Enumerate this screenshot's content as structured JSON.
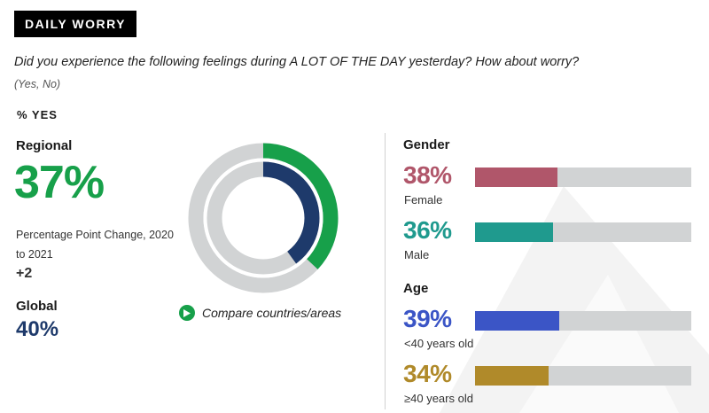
{
  "badge": "DAILY WORRY",
  "question": "Did you experience the following feelings during A LOT OF THE DAY yesterday? How about worry?",
  "answers": "(Yes, No)",
  "pct_label": "% YES",
  "regional": {
    "title": "Regional",
    "value": "37%",
    "change_label": "Percentage Point Change, 2020 to 2021",
    "change_value": "+2"
  },
  "global": {
    "title": "Global",
    "value": "40%"
  },
  "compare_label": "Compare countries/areas",
  "colors": {
    "regional": "#17a04a",
    "global": "#1e3a6b",
    "track": "#d1d3d4",
    "female": "#b0566a",
    "male": "#1f9a8e",
    "under40": "#3b55c6",
    "over40": "#b08a2a"
  },
  "icons": {
    "compare": "play-icon"
  },
  "chart_data": [
    {
      "type": "pie",
      "series": [
        {
          "name": "Regional",
          "value": 37
        },
        {
          "name": "Global",
          "value": 40
        }
      ]
    },
    {
      "type": "bar",
      "xlim": [
        0,
        100
      ],
      "groups": [
        {
          "title": "Gender",
          "bars": [
            {
              "label": "Female",
              "display": "38%",
              "value": 38,
              "color": "#b0566a"
            },
            {
              "label": "Male",
              "display": "36%",
              "value": 36,
              "color": "#1f9a8e"
            }
          ]
        },
        {
          "title": "Age",
          "bars": [
            {
              "label": "<40 years old",
              "display": "39%",
              "value": 39,
              "color": "#3b55c6"
            },
            {
              "label": "≥40 years old",
              "display": "34%",
              "value": 34,
              "color": "#b08a2a"
            }
          ]
        }
      ]
    }
  ]
}
